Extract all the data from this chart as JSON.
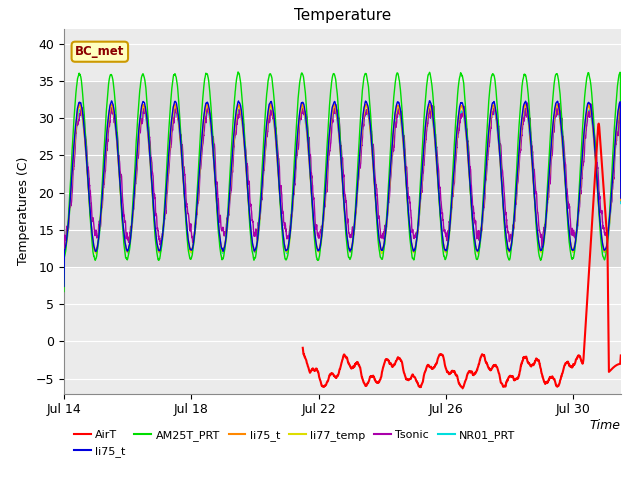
{
  "title": "Temperature",
  "ylabel": "Temperatures (C)",
  "xlabel": "Time",
  "xlim_days": [
    0,
    17.5
  ],
  "ylim": [
    -7,
    42
  ],
  "yticks": [
    -5,
    0,
    5,
    10,
    15,
    20,
    25,
    30,
    35,
    40
  ],
  "xtick_positions": [
    0,
    4,
    8,
    12,
    16
  ],
  "xtick_labels": [
    "Jul 14",
    "Jul 18",
    "Jul 22",
    "Jul 26",
    "Jul 30"
  ],
  "band_y_low": 10,
  "band_y_high": 35,
  "bc_met_label": "BC_met",
  "colors": {
    "AirT": "#ff0000",
    "li75_t": "#0000dd",
    "AM25T_PRT": "#00dd00",
    "li75_t2": "#ff8800",
    "li77_temp": "#dddd00",
    "Tsonic": "#aa00aa",
    "NR01_PRT": "#00dddd"
  },
  "legend_entries_row1": [
    {
      "label": "AirT",
      "color": "#ff0000"
    },
    {
      "label": "li75_t",
      "color": "#0000dd"
    },
    {
      "label": "AM25T_PRT",
      "color": "#00dd00"
    },
    {
      "label": "li75_t",
      "color": "#ff8800"
    },
    {
      "label": "li77_temp",
      "color": "#dddd00"
    },
    {
      "label": "Tsonic",
      "color": "#aa00aa"
    }
  ],
  "legend_entries_row2": [
    {
      "label": "NR01_PRT",
      "color": "#00dddd"
    }
  ],
  "background_color": "#ffffff",
  "plot_bg_color": "#ebebeb",
  "band_color": "#d8d8d8",
  "title_fontsize": 11,
  "axis_fontsize": 9,
  "tick_fontsize": 9,
  "figsize": [
    6.4,
    4.8
  ],
  "dpi": 100
}
